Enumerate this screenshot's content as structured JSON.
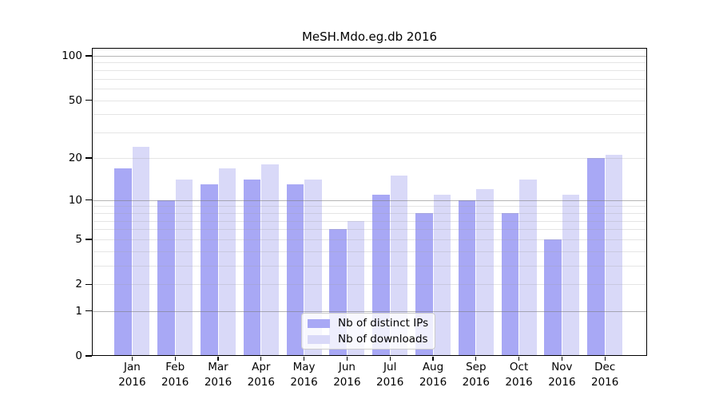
{
  "chart_data": {
    "type": "bar",
    "title": "MeSH.Mdo.eg.db 2016",
    "categories": [
      "Jan",
      "Feb",
      "Mar",
      "Apr",
      "May",
      "Jun",
      "Jul",
      "Aug",
      "Sep",
      "Oct",
      "Nov",
      "Dec"
    ],
    "category_year": "2016",
    "series": [
      {
        "name": "Nb of distinct IPs",
        "color": "#a8a8f5",
        "values": [
          17,
          10,
          13,
          14,
          13,
          6,
          11,
          8,
          10,
          8,
          5,
          20
        ]
      },
      {
        "name": "Nb of downloads",
        "color": "#d9d9f8",
        "values": [
          24,
          14,
          17,
          18,
          14,
          7,
          15,
          11,
          12,
          14,
          11,
          21
        ]
      }
    ],
    "yscale": "log1p",
    "ylim": [
      0,
      113
    ],
    "yticks": [
      0,
      1,
      2,
      5,
      10,
      20,
      50,
      100
    ],
    "major_gridlines": [
      1,
      10,
      100
    ],
    "minor_gridlines": [
      2,
      3,
      4,
      5,
      6,
      7,
      8,
      9,
      20,
      30,
      40,
      50,
      60,
      70,
      80,
      90
    ],
    "grid": true,
    "legend_position": "lower center",
    "xlabel": "",
    "ylabel": ""
  },
  "colors": {
    "background": "#ffffff",
    "axis": "#000000",
    "major_gridline": "rgba(120,120,120,0.55)",
    "minor_gridline": "rgba(160,160,160,0.28)",
    "legend_bg": "rgba(255,255,255,0.8)",
    "legend_border": "#cccccc"
  }
}
